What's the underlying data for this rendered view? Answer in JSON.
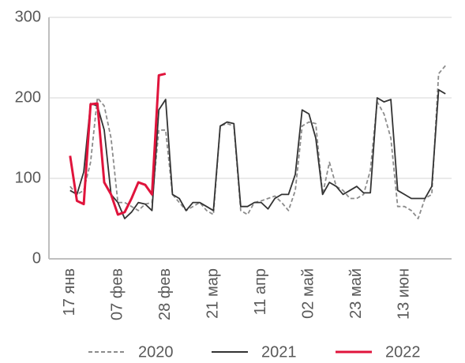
{
  "chart_data": {
    "type": "line",
    "categories": [
      "17 янв",
      null,
      null,
      null,
      null,
      null,
      null,
      "07 фев",
      null,
      null,
      null,
      null,
      null,
      null,
      "28 фев",
      null,
      null,
      null,
      null,
      null,
      null,
      "21 мар",
      null,
      null,
      null,
      null,
      null,
      null,
      "11 апр",
      null,
      null,
      null,
      null,
      null,
      null,
      "02 май",
      null,
      null,
      null,
      null,
      null,
      null,
      "23 май",
      null,
      null,
      null,
      null,
      null,
      null,
      "13 июн",
      null,
      null,
      null,
      null,
      null,
      null
    ],
    "series": [
      {
        "name": "2020",
        "color": "#8c8c8c",
        "dash": true,
        "values": [
          90,
          80,
          85,
          120,
          200,
          190,
          150,
          70,
          70,
          65,
          60,
          68,
          70,
          160,
          160,
          80,
          70,
          60,
          65,
          70,
          60,
          55,
          165,
          168,
          165,
          60,
          55,
          70,
          72,
          75,
          78,
          70,
          60,
          85,
          165,
          170,
          168,
          80,
          120,
          90,
          85,
          75,
          75,
          80,
          110,
          195,
          180,
          150,
          65,
          65,
          60,
          50,
          75,
          80,
          230,
          240
        ]
      },
      {
        "name": "2021",
        "color": "#333333",
        "dash": false,
        "values": [
          85,
          80,
          108,
          193,
          190,
          160,
          80,
          70,
          50,
          58,
          70,
          68,
          60,
          185,
          198,
          80,
          75,
          60,
          70,
          70,
          65,
          60,
          165,
          170,
          168,
          65,
          65,
          70,
          70,
          62,
          75,
          80,
          80,
          105,
          185,
          180,
          150,
          80,
          95,
          90,
          80,
          85,
          90,
          82,
          82,
          200,
          195,
          198,
          85,
          80,
          75,
          75,
          75,
          90,
          210,
          205
        ]
      },
      {
        "name": "2022",
        "color": "#e0143c",
        "dash": false,
        "values": [
          128,
          72,
          68,
          192,
          193,
          95,
          80,
          55,
          58,
          75,
          95,
          92,
          80,
          228,
          230,
          null,
          null,
          null,
          null,
          null,
          null,
          null,
          null,
          null,
          null,
          null,
          null,
          null,
          null,
          null,
          null,
          null,
          null,
          null,
          null,
          null,
          null,
          null,
          null,
          null,
          null,
          null,
          null,
          null,
          null,
          null,
          null,
          null,
          null,
          null,
          null,
          null,
          null,
          null,
          null,
          null
        ]
      }
    ],
    "ylim": [
      0,
      300
    ],
    "yticks": [
      0,
      100,
      200,
      300
    ],
    "grid": true
  }
}
